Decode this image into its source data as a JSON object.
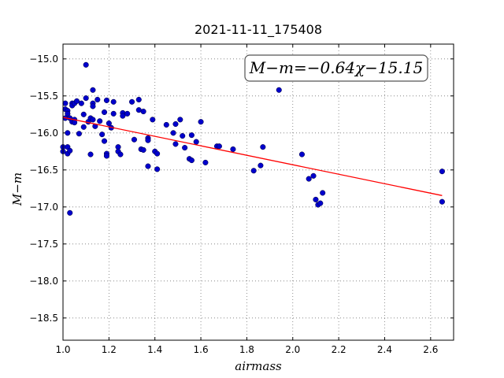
{
  "chart_data": {
    "type": "scatter",
    "title": "2021-11-11_175408",
    "xlabel": "airmass",
    "ylabel": "M−m",
    "xlim": [
      1.0,
      2.7
    ],
    "ylim": [
      -18.8,
      -14.8
    ],
    "y_inverted": true,
    "grid": true,
    "x_ticks": [
      "1.0",
      "1.2",
      "1.4",
      "1.6",
      "1.8",
      "2.0",
      "2.2",
      "2.4",
      "2.6"
    ],
    "y_ticks": [
      "−15.0",
      "−15.5",
      "−16.0",
      "−16.5",
      "−17.0",
      "−17.5",
      "−18.0",
      "−18.5"
    ],
    "annotation": "M−m=−0.64χ−15.15",
    "fit": {
      "slope": -0.64,
      "intercept": -15.15,
      "x_range": [
        1.0,
        2.65
      ],
      "color": "#ff0000"
    },
    "point_color": "#0000cc",
    "points": [
      [
        1.0,
        -16.25
      ],
      [
        1.0,
        -16.19
      ],
      [
        1.01,
        -15.6
      ],
      [
        1.01,
        -15.68
      ],
      [
        1.01,
        -15.8
      ],
      [
        1.02,
        -15.7
      ],
      [
        1.02,
        -15.74
      ],
      [
        1.02,
        -16.0
      ],
      [
        1.02,
        -16.19
      ],
      [
        1.02,
        -16.28
      ],
      [
        1.03,
        -15.8
      ],
      [
        1.03,
        -17.08
      ],
      [
        1.03,
        -16.24
      ],
      [
        1.04,
        -15.6
      ],
      [
        1.04,
        -15.63
      ],
      [
        1.04,
        -15.85
      ],
      [
        1.05,
        -15.6
      ],
      [
        1.05,
        -15.82
      ],
      [
        1.05,
        -15.86
      ],
      [
        1.06,
        -15.57
      ],
      [
        1.07,
        -16.01
      ],
      [
        1.08,
        -15.6
      ],
      [
        1.09,
        -15.75
      ],
      [
        1.09,
        -15.92
      ],
      [
        1.1,
        -15.08
      ],
      [
        1.1,
        -15.53
      ],
      [
        1.11,
        -15.85
      ],
      [
        1.12,
        -16.29
      ],
      [
        1.12,
        -15.8
      ],
      [
        1.13,
        -15.42
      ],
      [
        1.13,
        -15.6
      ],
      [
        1.13,
        -15.64
      ],
      [
        1.13,
        -15.82
      ],
      [
        1.14,
        -15.91
      ],
      [
        1.15,
        -15.55
      ],
      [
        1.16,
        -15.84
      ],
      [
        1.17,
        -16.02
      ],
      [
        1.18,
        -15.72
      ],
      [
        1.18,
        -16.11
      ],
      [
        1.19,
        -15.56
      ],
      [
        1.19,
        -16.28
      ],
      [
        1.19,
        -16.31
      ],
      [
        1.2,
        -15.87
      ],
      [
        1.21,
        -15.93
      ],
      [
        1.22,
        -15.58
      ],
      [
        1.22,
        -15.74
      ],
      [
        1.24,
        -16.19
      ],
      [
        1.24,
        -16.25
      ],
      [
        1.25,
        -16.29
      ],
      [
        1.26,
        -15.73
      ],
      [
        1.26,
        -15.77
      ],
      [
        1.28,
        -15.74
      ],
      [
        1.3,
        -15.58
      ],
      [
        1.31,
        -16.09
      ],
      [
        1.33,
        -15.55
      ],
      [
        1.33,
        -15.69
      ],
      [
        1.34,
        -16.22
      ],
      [
        1.35,
        -15.71
      ],
      [
        1.35,
        -16.23
      ],
      [
        1.37,
        -16.07
      ],
      [
        1.37,
        -16.1
      ],
      [
        1.37,
        -16.45
      ],
      [
        1.39,
        -15.82
      ],
      [
        1.4,
        -16.25
      ],
      [
        1.41,
        -16.28
      ],
      [
        1.41,
        -16.49
      ],
      [
        1.45,
        -15.89
      ],
      [
        1.48,
        -16.0
      ],
      [
        1.49,
        -15.88
      ],
      [
        1.49,
        -16.15
      ],
      [
        1.51,
        -15.82
      ],
      [
        1.52,
        -16.04
      ],
      [
        1.53,
        -16.2
      ],
      [
        1.55,
        -16.35
      ],
      [
        1.56,
        -16.03
      ],
      [
        1.56,
        -16.37
      ],
      [
        1.58,
        -16.12
      ],
      [
        1.6,
        -15.85
      ],
      [
        1.62,
        -16.4
      ],
      [
        1.67,
        -16.18
      ],
      [
        1.68,
        -16.18
      ],
      [
        1.74,
        -16.22
      ],
      [
        1.83,
        -16.51
      ],
      [
        1.86,
        -16.44
      ],
      [
        1.87,
        -16.19
      ],
      [
        1.94,
        -15.42
      ],
      [
        2.04,
        -16.29
      ],
      [
        2.07,
        -16.62
      ],
      [
        2.09,
        -16.58
      ],
      [
        2.1,
        -16.9
      ],
      [
        2.11,
        -16.97
      ],
      [
        2.12,
        -16.95
      ],
      [
        2.13,
        -16.81
      ],
      [
        2.65,
        -16.52
      ],
      [
        2.65,
        -16.93
      ]
    ]
  }
}
